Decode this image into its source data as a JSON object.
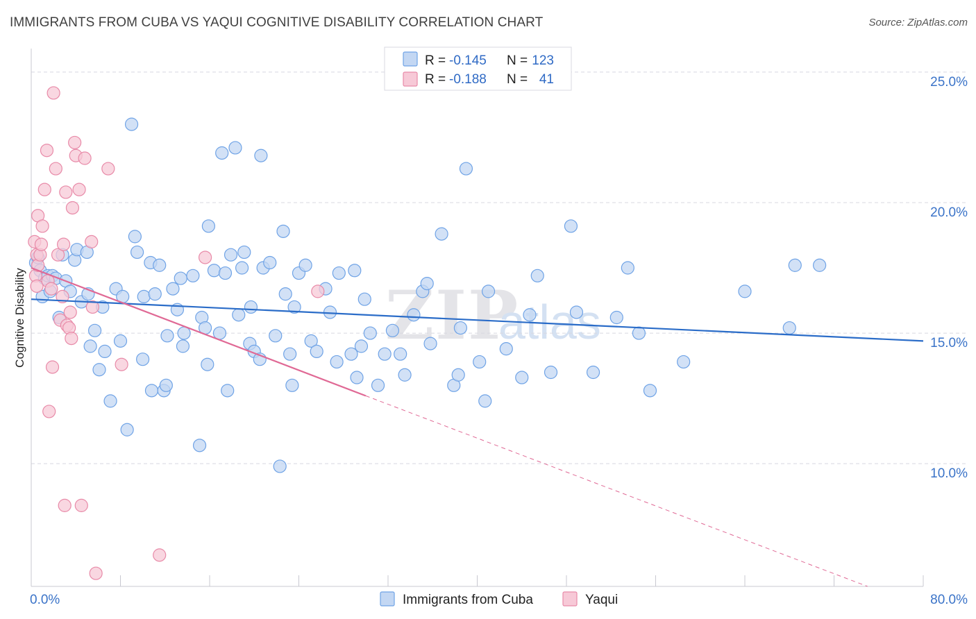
{
  "title": "IMMIGRANTS FROM CUBA VS YAQUI COGNITIVE DISABILITY CORRELATION CHART",
  "source": "Source: ZipAtlas.com",
  "watermark": {
    "zip": "ZIP",
    "atlas": "atlas"
  },
  "colors": {
    "blue": "#6fa3e6",
    "blue_fill": "#c3d7f3",
    "blue_line": "#2a6cc8",
    "pink": "#e88aa8",
    "pink_fill": "#f7c9d7",
    "pink_line": "#e06995",
    "grid": "#d8d8e0",
    "tick_text": "#3a73c8"
  },
  "legend": {
    "rows": [
      {
        "r_label": "R =",
        "r_value": "-0.145",
        "n_label": "N =",
        "n_value": "123"
      },
      {
        "r_label": "R =",
        "r_value": "-0.188",
        "n_label": "N =",
        "n_value": "41"
      }
    ]
  },
  "chart_data": {
    "type": "scatter",
    "xlabel": "",
    "ylabel": "Cognitive Disability",
    "xlim": [
      0,
      80
    ],
    "ylim": [
      5.3,
      25.9
    ],
    "x_tick_labels": [
      "0.0%",
      "80.0%"
    ],
    "y_ticks": [
      10,
      15,
      20,
      25
    ],
    "y_tick_labels": [
      "10.0%",
      "15.0%",
      "20.0%",
      "25.0%"
    ],
    "grid": true,
    "series": [
      {
        "name": "Immigrants from Cuba",
        "trend": {
          "x": [
            0,
            80
          ],
          "y": [
            16.3,
            14.7
          ]
        },
        "points": [
          [
            0.4,
            17.7
          ],
          [
            0.6,
            17.9
          ],
          [
            0.8,
            17.4
          ],
          [
            1.0,
            16.4
          ],
          [
            1.2,
            17.1
          ],
          [
            1.5,
            17.2
          ],
          [
            1.7,
            16.6
          ],
          [
            1.9,
            17.2
          ],
          [
            2.2,
            17.1
          ],
          [
            2.5,
            15.6
          ],
          [
            2.8,
            18.0
          ],
          [
            3.1,
            17.0
          ],
          [
            3.5,
            16.6
          ],
          [
            3.9,
            17.8
          ],
          [
            4.1,
            18.2
          ],
          [
            4.5,
            16.2
          ],
          [
            5.0,
            18.1
          ],
          [
            5.1,
            16.5
          ],
          [
            5.3,
            14.5
          ],
          [
            5.7,
            15.1
          ],
          [
            6.1,
            13.6
          ],
          [
            6.4,
            16.0
          ],
          [
            6.6,
            14.3
          ],
          [
            7.1,
            12.4
          ],
          [
            7.6,
            16.7
          ],
          [
            8.0,
            14.7
          ],
          [
            8.2,
            16.4
          ],
          [
            8.6,
            11.3
          ],
          [
            9.0,
            23.0
          ],
          [
            9.3,
            18.7
          ],
          [
            9.5,
            18.1
          ],
          [
            10.0,
            14.0
          ],
          [
            10.1,
            16.4
          ],
          [
            10.7,
            17.7
          ],
          [
            10.8,
            12.8
          ],
          [
            11.1,
            16.5
          ],
          [
            11.5,
            17.6
          ],
          [
            11.9,
            12.8
          ],
          [
            12.1,
            13.0
          ],
          [
            12.2,
            14.9
          ],
          [
            12.7,
            16.7
          ],
          [
            13.1,
            15.9
          ],
          [
            13.4,
            17.1
          ],
          [
            13.6,
            14.5
          ],
          [
            13.7,
            15.0
          ],
          [
            14.5,
            17.2
          ],
          [
            15.1,
            10.7
          ],
          [
            15.3,
            15.6
          ],
          [
            15.6,
            15.2
          ],
          [
            15.8,
            13.8
          ],
          [
            15.9,
            19.1
          ],
          [
            16.4,
            17.4
          ],
          [
            16.9,
            15.0
          ],
          [
            17.1,
            21.9
          ],
          [
            17.4,
            17.3
          ],
          [
            17.6,
            12.8
          ],
          [
            17.9,
            18.0
          ],
          [
            18.3,
            22.1
          ],
          [
            18.6,
            15.7
          ],
          [
            18.9,
            17.5
          ],
          [
            19.1,
            18.1
          ],
          [
            19.6,
            14.6
          ],
          [
            19.7,
            16.0
          ],
          [
            20.0,
            14.3
          ],
          [
            20.5,
            14.0
          ],
          [
            20.6,
            21.8
          ],
          [
            20.8,
            17.5
          ],
          [
            21.4,
            17.7
          ],
          [
            21.9,
            14.9
          ],
          [
            22.3,
            9.9
          ],
          [
            22.6,
            18.9
          ],
          [
            22.8,
            16.5
          ],
          [
            23.2,
            14.2
          ],
          [
            23.4,
            13.0
          ],
          [
            23.6,
            16.0
          ],
          [
            24.0,
            17.3
          ],
          [
            24.6,
            17.6
          ],
          [
            25.1,
            14.7
          ],
          [
            25.6,
            14.3
          ],
          [
            26.4,
            16.7
          ],
          [
            26.8,
            15.8
          ],
          [
            27.4,
            13.9
          ],
          [
            27.6,
            17.3
          ],
          [
            28.7,
            14.2
          ],
          [
            29.0,
            17.4
          ],
          [
            29.2,
            13.3
          ],
          [
            29.6,
            14.5
          ],
          [
            29.9,
            16.3
          ],
          [
            30.4,
            15.0
          ],
          [
            31.1,
            13.0
          ],
          [
            31.7,
            14.2
          ],
          [
            32.4,
            15.1
          ],
          [
            33.1,
            14.2
          ],
          [
            33.5,
            13.4
          ],
          [
            34.3,
            15.7
          ],
          [
            35.1,
            16.6
          ],
          [
            35.5,
            16.9
          ],
          [
            35.8,
            14.6
          ],
          [
            36.8,
            18.8
          ],
          [
            37.9,
            13.0
          ],
          [
            38.3,
            13.4
          ],
          [
            38.5,
            15.2
          ],
          [
            39.0,
            21.3
          ],
          [
            40.2,
            13.9
          ],
          [
            40.7,
            12.4
          ],
          [
            41.0,
            16.6
          ],
          [
            42.6,
            14.4
          ],
          [
            44.0,
            13.3
          ],
          [
            44.7,
            15.7
          ],
          [
            45.4,
            17.2
          ],
          [
            46.6,
            13.5
          ],
          [
            48.4,
            19.1
          ],
          [
            48.9,
            15.8
          ],
          [
            50.4,
            13.5
          ],
          [
            52.5,
            15.6
          ],
          [
            53.5,
            17.5
          ],
          [
            54.5,
            15.0
          ],
          [
            55.5,
            12.8
          ],
          [
            58.5,
            13.9
          ],
          [
            64.0,
            16.6
          ],
          [
            68.0,
            15.2
          ],
          [
            68.5,
            17.6
          ],
          [
            70.7,
            17.6
          ]
        ]
      },
      {
        "name": "Yaqui",
        "trend": {
          "x": [
            0,
            30
          ],
          "y": [
            17.5,
            12.6
          ]
        },
        "trend_ext": {
          "x": [
            30,
            75
          ],
          "y": [
            12.6,
            5.3
          ]
        },
        "points": [
          [
            0.3,
            18.5
          ],
          [
            0.4,
            17.2
          ],
          [
            0.5,
            18.0
          ],
          [
            0.5,
            16.8
          ],
          [
            0.6,
            19.5
          ],
          [
            0.6,
            17.6
          ],
          [
            0.8,
            18.0
          ],
          [
            0.9,
            18.4
          ],
          [
            1.0,
            19.1
          ],
          [
            1.2,
            20.5
          ],
          [
            1.4,
            22.0
          ],
          [
            1.5,
            17.0
          ],
          [
            1.6,
            12.0
          ],
          [
            1.8,
            16.7
          ],
          [
            1.9,
            13.7
          ],
          [
            2.0,
            24.2
          ],
          [
            2.2,
            21.3
          ],
          [
            2.4,
            18.0
          ],
          [
            2.6,
            15.5
          ],
          [
            2.8,
            16.4
          ],
          [
            2.9,
            18.4
          ],
          [
            3.0,
            8.4
          ],
          [
            3.1,
            20.4
          ],
          [
            3.2,
            15.3
          ],
          [
            3.4,
            15.2
          ],
          [
            3.5,
            15.8
          ],
          [
            3.6,
            14.8
          ],
          [
            3.7,
            19.8
          ],
          [
            3.9,
            22.3
          ],
          [
            4.0,
            21.8
          ],
          [
            4.3,
            20.5
          ],
          [
            4.5,
            8.4
          ],
          [
            4.8,
            21.7
          ],
          [
            5.4,
            18.5
          ],
          [
            5.5,
            16.0
          ],
          [
            5.8,
            5.8
          ],
          [
            6.9,
            21.3
          ],
          [
            8.1,
            13.8
          ],
          [
            11.5,
            6.5
          ],
          [
            15.6,
            17.9
          ],
          [
            25.7,
            16.6
          ]
        ]
      }
    ]
  },
  "bottom_legend": {
    "items": [
      "Immigrants from Cuba",
      "Yaqui"
    ]
  }
}
